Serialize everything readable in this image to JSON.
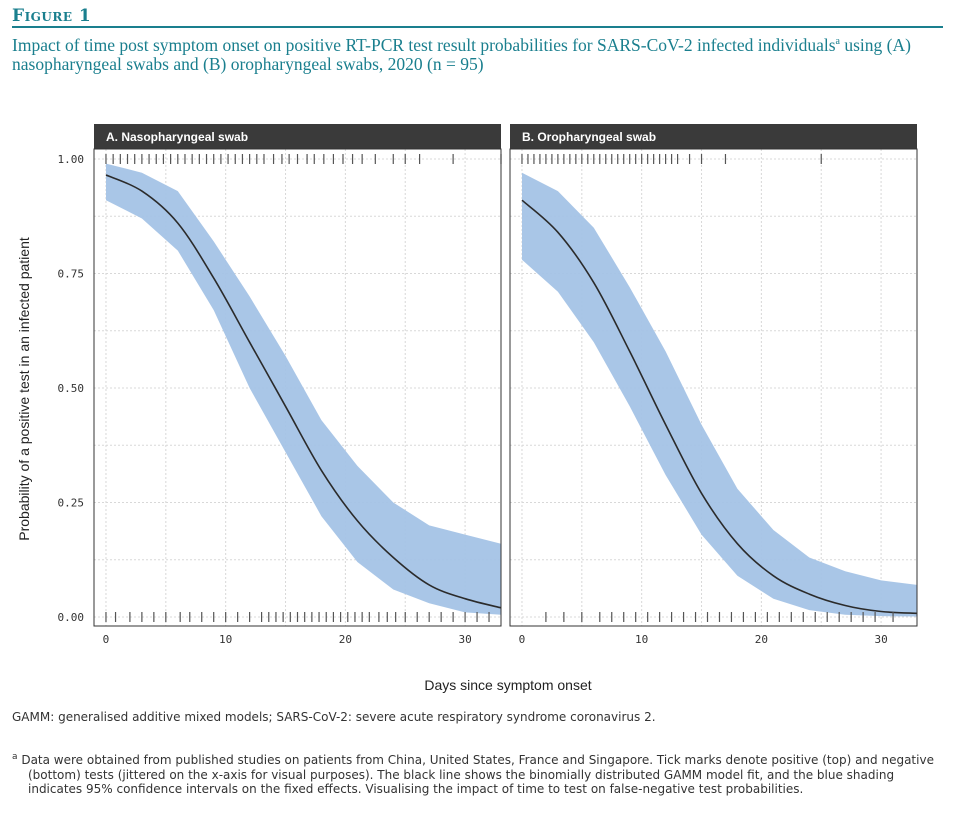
{
  "figure": {
    "label": "Figure 1",
    "title": "Impact of time post symptom onset on positive RT-PCR test result probabilities for SARS-CoV-2 infected individuals",
    "title_sup": "a",
    "title_rest": " using (A) nasopharyngeal swabs and (B) oropharyngeal swabs, 2020 (n = 95)"
  },
  "colors": {
    "accent": "#1a7f8e",
    "band": "#a4c3e6",
    "line": "#2b2b2b",
    "strip": "#3a3a3a",
    "rug": "#555555"
  },
  "chart_data": {
    "type": "line",
    "xlabel": "Days since symptom onset",
    "ylabel": "Probability of a positive test in an infected patient",
    "xlim": [
      -1,
      33
    ],
    "ylim": [
      0,
      1
    ],
    "x_ticks": [
      0,
      10,
      20,
      30
    ],
    "x_tick_labels": [
      "0",
      "10",
      "20",
      "30"
    ],
    "y_ticks": [
      0,
      0.25,
      0.5,
      0.75,
      1
    ],
    "y_tick_labels": [
      "0.00",
      "0.25",
      "0.50",
      "0.75",
      "1.00"
    ],
    "grid": true,
    "panels": [
      {
        "label": "A. Nasopharyngeal swab",
        "x": [
          0,
          3,
          6,
          9,
          12,
          15,
          18,
          21,
          24,
          27,
          30,
          33
        ],
        "fit": [
          0.965,
          0.93,
          0.86,
          0.74,
          0.6,
          0.46,
          0.32,
          0.21,
          0.13,
          0.07,
          0.04,
          0.02
        ],
        "lower": [
          0.91,
          0.87,
          0.8,
          0.67,
          0.5,
          0.36,
          0.22,
          0.12,
          0.06,
          0.03,
          0.01,
          0.005
        ],
        "upper": [
          0.99,
          0.97,
          0.93,
          0.82,
          0.7,
          0.57,
          0.43,
          0.33,
          0.25,
          0.2,
          0.18,
          0.16
        ],
        "rug_positive": [
          0,
          0.6,
          1.2,
          1.8,
          2.4,
          3,
          3.6,
          4.2,
          4.8,
          5.4,
          6,
          6.6,
          7.2,
          7.8,
          8.4,
          9,
          9.6,
          10.2,
          10.8,
          11.4,
          12,
          12.6,
          13.2,
          14,
          14.7,
          15.3,
          16,
          16.8,
          17.4,
          18.2,
          19,
          19.8,
          20.6,
          21.4,
          22.5,
          24,
          25,
          26.2,
          29,
          33
        ],
        "rug_negative": [
          0,
          0.8,
          2,
          3,
          4,
          5,
          6.2,
          7,
          8,
          9,
          10,
          11,
          12,
          13,
          13.6,
          14.2,
          14.8,
          15.4,
          16,
          16.6,
          17.2,
          17.8,
          18.4,
          19,
          19.6,
          20.2,
          20.8,
          21.4,
          22,
          22.8,
          23.5,
          24.2,
          25,
          26,
          27,
          28,
          29,
          30,
          31,
          32
        ]
      },
      {
        "label": "B. Oropharyngeal swab",
        "x": [
          0,
          3,
          6,
          9,
          12,
          15,
          18,
          21,
          24,
          27,
          30,
          33
        ],
        "fit": [
          0.91,
          0.84,
          0.73,
          0.58,
          0.42,
          0.27,
          0.16,
          0.09,
          0.05,
          0.025,
          0.012,
          0.008
        ],
        "lower": [
          0.78,
          0.71,
          0.6,
          0.46,
          0.31,
          0.18,
          0.09,
          0.04,
          0.015,
          0.005,
          0.002,
          0.001
        ],
        "upper": [
          0.97,
          0.93,
          0.85,
          0.72,
          0.58,
          0.42,
          0.28,
          0.19,
          0.13,
          0.1,
          0.08,
          0.07
        ],
        "rug_positive": [
          0,
          0.5,
          1,
          1.5,
          2,
          2.5,
          3,
          3.5,
          4,
          4.5,
          5,
          5.5,
          6,
          6.5,
          7,
          7.5,
          8,
          8.5,
          9,
          9.5,
          10,
          10.5,
          11,
          11.5,
          12,
          12.5,
          13,
          14,
          15,
          17,
          25
        ],
        "rug_negative": [
          2,
          3.5,
          5,
          6.5,
          7.5,
          8.5,
          9.5,
          10.5,
          11.5,
          12.5,
          13.5,
          14.5,
          15.5,
          16.5,
          17.5,
          18.5,
          19.5,
          20.5,
          21.5,
          22.5,
          23.5,
          24.5,
          25.5,
          26.5,
          27.5,
          28.5,
          29.5,
          31
        ]
      }
    ]
  },
  "footnotes": {
    "abbreviations": "GAMM: generalised additive mixed models; SARS-CoV-2: severe acute respiratory syndrome coronavirus 2.",
    "note_sup": "a",
    "note": " Data were obtained from published studies on patients from China, United States, France and Singapore. Tick marks denote positive (top) and negative (bottom) tests (jittered on the x-axis for visual purposes). The black line shows the binomially distributed GAMM model fit, and the blue shading indicates 95% confidence intervals on the fixed effects. Visualising the impact of time to test on false-negative test probabilities."
  }
}
